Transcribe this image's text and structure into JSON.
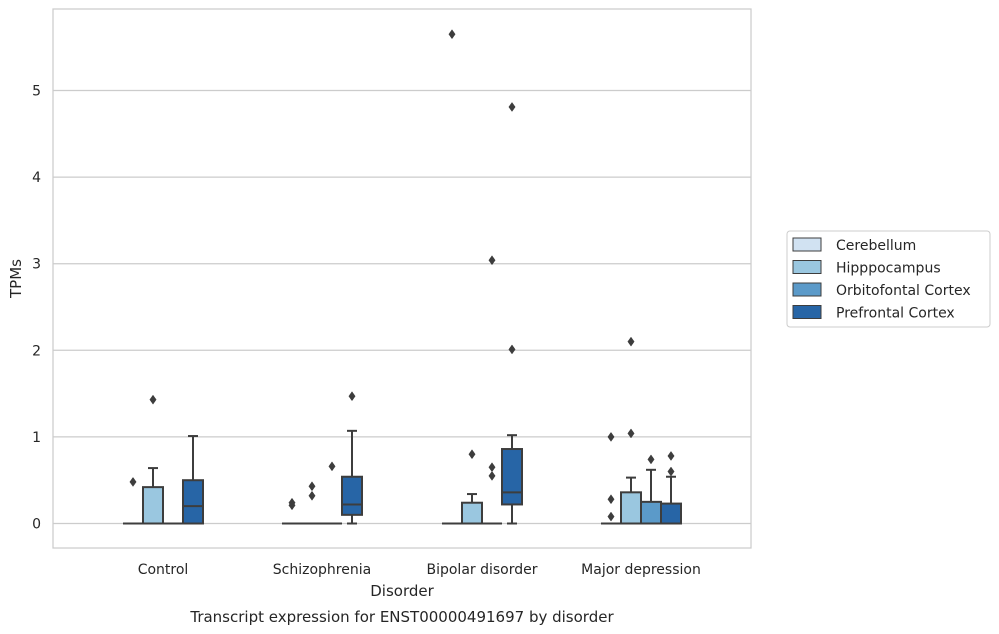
{
  "chart_data": {
    "type": "box",
    "title": "",
    "caption": "Transcript expression for ENST00000491697 by disorder",
    "xlabel": "Disorder",
    "ylabel": "TPMs",
    "ylim": [
      -0.28,
      5.95
    ],
    "yticks": [
      0,
      1,
      2,
      3,
      4,
      5
    ],
    "grid": "horizontal",
    "legend_placement": "right",
    "categories": [
      "Control",
      "Schizophrenia",
      "Bipolar disorder",
      "Major depression"
    ],
    "series": [
      {
        "name": "Cerebellum",
        "color": "#d1e2f2",
        "boxes": [
          {
            "q1": 0,
            "median": 0,
            "q3": 0,
            "whisker_low": 0,
            "whisker_high": 0,
            "outliers": [
              0.48
            ]
          },
          {
            "q1": 0,
            "median": 0,
            "q3": 0,
            "whisker_low": 0,
            "whisker_high": 0,
            "outliers": [
              0.21,
              0.24
            ]
          },
          {
            "q1": 0,
            "median": 0,
            "q3": 0,
            "whisker_low": 0,
            "whisker_high": 0,
            "outliers": [
              5.65
            ]
          },
          {
            "q1": 0,
            "median": 0,
            "q3": 0,
            "whisker_low": 0,
            "whisker_high": 0,
            "outliers": [
              0.08,
              0.28,
              1.0
            ]
          }
        ]
      },
      {
        "name": "Hipppocampus",
        "color": "#9ac7e0",
        "boxes": [
          {
            "q1": 0,
            "median": 0,
            "q3": 0.42,
            "whisker_low": 0,
            "whisker_high": 0.64,
            "outliers": [
              1.43
            ]
          },
          {
            "q1": 0,
            "median": 0,
            "q3": 0,
            "whisker_low": 0,
            "whisker_high": 0,
            "outliers": [
              0.32,
              0.43
            ]
          },
          {
            "q1": 0,
            "median": 0,
            "q3": 0.24,
            "whisker_low": 0,
            "whisker_high": 0.34,
            "outliers": [
              0.8
            ]
          },
          {
            "q1": 0,
            "median": 0,
            "q3": 0.36,
            "whisker_low": 0,
            "whisker_high": 0.53,
            "outliers": [
              1.04,
              2.1
            ]
          }
        ]
      },
      {
        "name": "Orbitofontal Cortex",
        "color": "#5b9ac9",
        "boxes": [
          {
            "q1": 0,
            "median": 0,
            "q3": 0,
            "whisker_low": 0,
            "whisker_high": 0,
            "outliers": []
          },
          {
            "q1": 0,
            "median": 0,
            "q3": 0,
            "whisker_low": 0,
            "whisker_high": 0,
            "outliers": [
              0.66
            ]
          },
          {
            "q1": 0,
            "median": 0,
            "q3": 0,
            "whisker_low": 0,
            "whisker_high": 0,
            "outliers": [
              0.55,
              0.65,
              3.04
            ]
          },
          {
            "q1": 0,
            "median": 0,
            "q3": 0.25,
            "whisker_low": 0,
            "whisker_high": 0.62,
            "outliers": [
              0.74
            ]
          }
        ]
      },
      {
        "name": "Prefrontal Cortex",
        "color": "#2765a6",
        "boxes": [
          {
            "q1": 0,
            "median": 0.2,
            "q3": 0.5,
            "whisker_low": 0,
            "whisker_high": 1.01,
            "outliers": []
          },
          {
            "q1": 0.1,
            "median": 0.22,
            "q3": 0.54,
            "whisker_low": 0,
            "whisker_high": 1.07,
            "outliers": [
              1.47
            ]
          },
          {
            "q1": 0.22,
            "median": 0.36,
            "q3": 0.86,
            "whisker_low": 0,
            "whisker_high": 1.02,
            "outliers": [
              2.01,
              4.81
            ]
          },
          {
            "q1": 0,
            "median": 0,
            "q3": 0.23,
            "whisker_low": 0,
            "whisker_high": 0.54,
            "outliers": [
              0.6,
              0.78
            ]
          }
        ]
      }
    ]
  }
}
